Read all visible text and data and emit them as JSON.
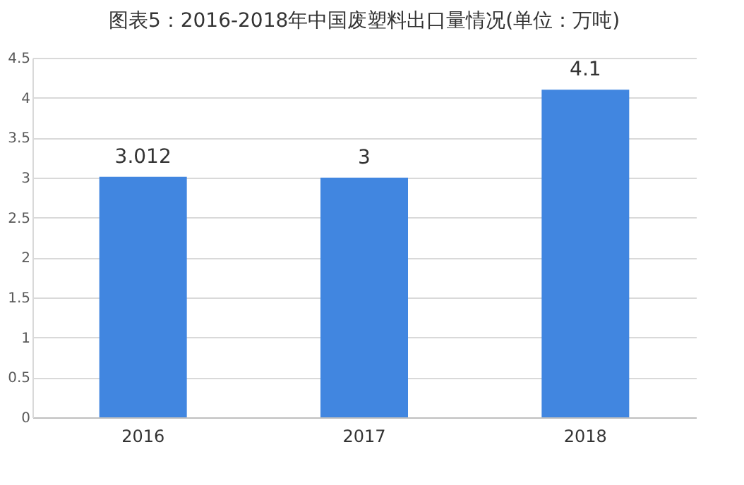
{
  "chart_data": {
    "type": "bar",
    "title": "图表5：2016-2018年中国废塑料出口量情况(单位：万吨)",
    "categories": [
      "2016",
      "2017",
      "2018"
    ],
    "values": [
      3.012,
      3,
      4.1
    ],
    "color": "#4186e0",
    "ylim": [
      0,
      4.5
    ],
    "yticks": [
      0,
      0.5,
      1,
      1.5,
      2,
      2.5,
      3,
      3.5,
      4,
      4.5
    ],
    "grid": "y",
    "data_labels": true
  }
}
